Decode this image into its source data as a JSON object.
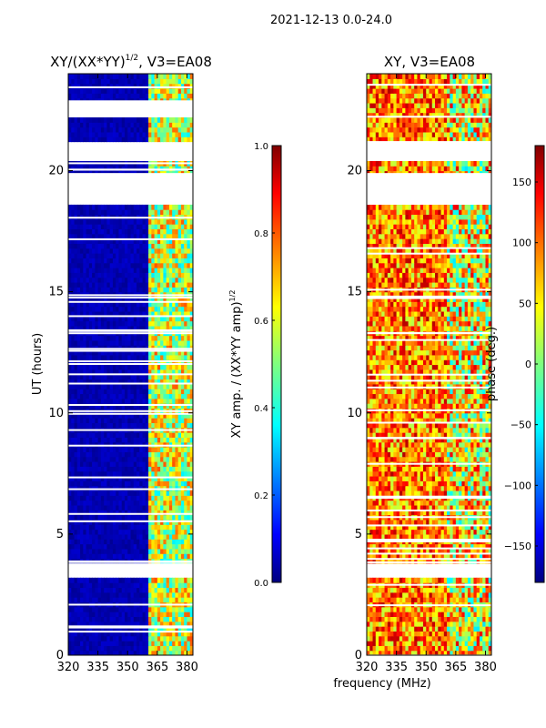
{
  "figure_title": "2021-12-13 0.0-24.0",
  "shared_xlabel": "frequency (MHz)",
  "chart_data": [
    {
      "type": "heatmap",
      "title_text": "XY/(XX*YY)",
      "title_sup": "1/2",
      "title_rest": ", V3=EA08",
      "ylabel": "UT (hours)",
      "xlim": [
        320,
        383
      ],
      "ylim": [
        0,
        24
      ],
      "x_ticks": [
        320,
        335,
        350,
        365,
        380
      ],
      "y_ticks": [
        0,
        5,
        10,
        15,
        20
      ],
      "colorbar": {
        "label_text": "XY amp. / (XX*YY amp)",
        "label_sup": "1/2",
        "range": [
          0.0,
          1.0
        ],
        "ticks": [
          "0.0",
          "0.2",
          "0.4",
          "0.6",
          "0.8",
          "1.0"
        ],
        "tick_values": [
          0.0,
          0.2,
          0.4,
          0.6,
          0.8,
          1.0
        ],
        "colormap": "jet"
      },
      "flagged_time_ranges_hours": [
        [
          20.0,
          20.05
        ],
        [
          18.6,
          19.9
        ],
        [
          20.4,
          21.1
        ],
        [
          22.2,
          22.9
        ],
        [
          3.3,
          3.75
        ]
      ],
      "high_value_band_mhz": [
        361,
        383
      ]
    },
    {
      "type": "heatmap",
      "title_text": "XY, V3=EA08",
      "xlim": [
        320,
        383
      ],
      "ylim": [
        0,
        24
      ],
      "x_ticks": [
        320,
        335,
        350,
        365,
        380
      ],
      "y_ticks": [
        0,
        5,
        10,
        15,
        20
      ],
      "colorbar": {
        "label_text": "phase (deg.)",
        "range": [
          -180,
          180
        ],
        "ticks": [
          "150",
          "100",
          "50",
          "0",
          "−50",
          "−100",
          "−150"
        ],
        "tick_values": [
          150,
          100,
          50,
          0,
          -50,
          -100,
          -150
        ],
        "colormap": "jet"
      },
      "flagged_time_ranges_hours": [
        [
          18.6,
          19.9
        ],
        [
          20.4,
          21.1
        ],
        [
          3.3,
          3.75
        ]
      ]
    }
  ],
  "colors": {
    "jet_0": "#00007f",
    "jet_1": "#0000ff",
    "jet_2": "#00ffff",
    "jet_3": "#7fff7f",
    "jet_4": "#ffff00",
    "jet_5": "#ff0000",
    "jet_6": "#7f0000"
  }
}
